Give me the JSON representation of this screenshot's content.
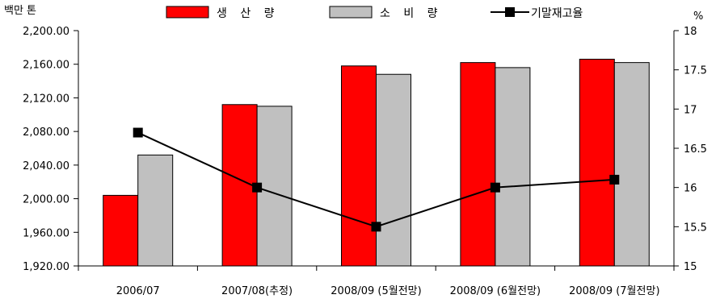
{
  "chart_data": {
    "type": "bar",
    "y_left_unit": "백만 톤",
    "y_right_unit": "%",
    "categories": [
      "2006/07",
      "2007/08(추정)",
      "2008/09 (5월전망)",
      "2008/09 (6월전망)",
      "2008/09 (7월전망)"
    ],
    "series": [
      {
        "name": "생 산 량",
        "kind": "bar",
        "axis": "left",
        "color": "#ff0000",
        "values": [
          2004,
          2112,
          2158,
          2162,
          2166
        ]
      },
      {
        "name": "소 비 량",
        "kind": "bar",
        "axis": "left",
        "color": "#c0c0c0",
        "values": [
          2052,
          2110,
          2148,
          2156,
          2162
        ]
      },
      {
        "name": "기말재고율",
        "kind": "line",
        "axis": "right",
        "color": "#000000",
        "values": [
          16.7,
          16.0,
          15.5,
          16.0,
          16.1
        ]
      }
    ],
    "y_left_ticks": [
      "1,920.00",
      "1,960.00",
      "2,000.00",
      "2,040.00",
      "2,080.00",
      "2,120.00",
      "2,160.00",
      "2,200.00"
    ],
    "y_left_range": [
      1920,
      2200
    ],
    "y_right_ticks": [
      "15",
      "15.5",
      "16",
      "16.5",
      "17",
      "17.5",
      "18"
    ],
    "y_right_range": [
      15,
      18
    ],
    "legend_position": "top"
  }
}
